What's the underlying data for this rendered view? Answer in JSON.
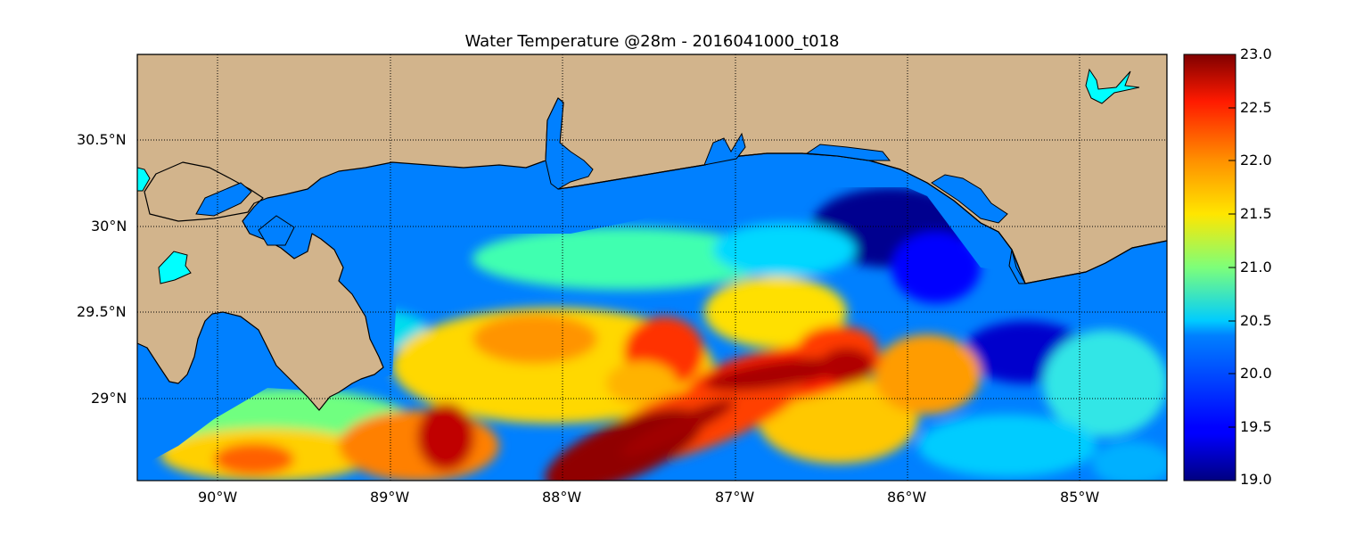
{
  "title": "Water Temperature @28m - 2016041000_t018",
  "map": {
    "longitude_ticks": [
      "90°W",
      "89°W",
      "88°W",
      "87°W",
      "86°W",
      "85°W"
    ],
    "latitude_ticks": [
      "30.5°N",
      "30°N",
      "29.5°N",
      "29°N"
    ],
    "land_color": "#d2b48c",
    "inland_water_color": "#00ffff",
    "masked_ocean_color": "#0080ff",
    "coastline_color": "#000000",
    "grid": "dotted"
  },
  "colorbar": {
    "colormap": "jet",
    "min": 19.0,
    "max": 23.0,
    "tick_labels": [
      "23.0",
      "22.5",
      "22.0",
      "21.5",
      "21.0",
      "20.5",
      "20.0",
      "19.5",
      "19.0"
    ]
  }
}
